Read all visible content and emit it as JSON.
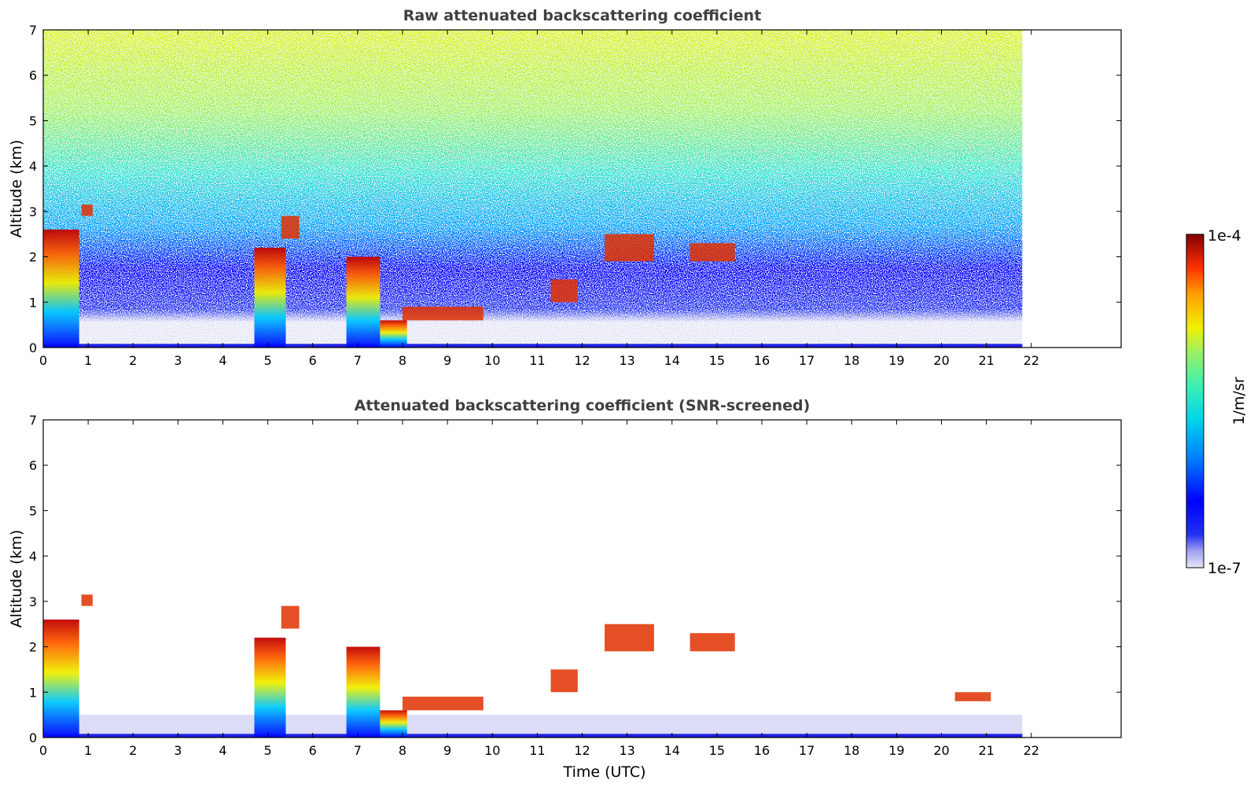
{
  "colors": {
    "colormap": [
      "#e8e8f8",
      "#c8c8f0",
      "#a0a0f0",
      "#7070f0",
      "#2030f0",
      "#0000ff",
      "#0050ff",
      "#00a0ff",
      "#00d8e8",
      "#40f0b0",
      "#a0f060",
      "#f0f000",
      "#ffa000",
      "#ff4000",
      "#e00000",
      "#800000"
    ]
  },
  "colorbar": {
    "max_label": "1e-4",
    "min_label": "1e-7",
    "unit_label": "1/m/sr"
  },
  "chart_data": [
    {
      "type": "heatmap",
      "title": "Raw attenuated backscattering coefficient",
      "xlabel": "",
      "ylabel": "Altitude (km)",
      "xlim": [
        0,
        24
      ],
      "ylim": [
        0,
        7
      ],
      "xticks": [
        "0",
        "1",
        "2",
        "3",
        "4",
        "5",
        "6",
        "7",
        "8",
        "9",
        "10",
        "11",
        "12",
        "13",
        "14",
        "15",
        "16",
        "17",
        "18",
        "19",
        "20",
        "21",
        "22"
      ],
      "yticks": [
        "0",
        "1",
        "2",
        "3",
        "4",
        "5",
        "6",
        "7"
      ],
      "data_end_time": 21.8,
      "scale": "log",
      "cloud_features": [
        {
          "time_start": 0.0,
          "time_end": 0.8,
          "alt_base": 0.0,
          "alt_top": 2.6
        },
        {
          "time_start": 0.85,
          "time_end": 1.1,
          "alt_base": 2.9,
          "alt_top": 3.15
        },
        {
          "time_start": 4.7,
          "time_end": 5.4,
          "alt_base": 0.0,
          "alt_top": 2.2
        },
        {
          "time_start": 5.3,
          "time_end": 5.7,
          "alt_base": 2.4,
          "alt_top": 2.9
        },
        {
          "time_start": 6.75,
          "time_end": 7.5,
          "alt_base": 0.0,
          "alt_top": 2.0
        },
        {
          "time_start": 7.5,
          "time_end": 8.1,
          "alt_base": 0.0,
          "alt_top": 0.6
        },
        {
          "time_start": 8.0,
          "time_end": 9.8,
          "alt_base": 0.6,
          "alt_top": 0.9
        },
        {
          "time_start": 11.3,
          "time_end": 11.9,
          "alt_base": 1.0,
          "alt_top": 1.5
        },
        {
          "time_start": 12.5,
          "time_end": 13.6,
          "alt_base": 1.9,
          "alt_top": 2.5
        },
        {
          "time_start": 14.4,
          "time_end": 15.4,
          "alt_base": 1.9,
          "alt_top": 2.3
        }
      ]
    },
    {
      "type": "heatmap",
      "title": "Attenuated backscattering coefficient (SNR-screened)",
      "xlabel": "Time (UTC)",
      "ylabel": "Altitude (km)",
      "xlim": [
        0,
        24
      ],
      "ylim": [
        0,
        7
      ],
      "xticks": [
        "0",
        "1",
        "2",
        "3",
        "4",
        "5",
        "6",
        "7",
        "8",
        "9",
        "10",
        "11",
        "12",
        "13",
        "14",
        "15",
        "16",
        "17",
        "18",
        "19",
        "20",
        "21",
        "22"
      ],
      "yticks": [
        "0",
        "1",
        "2",
        "3",
        "4",
        "5",
        "6",
        "7"
      ],
      "data_end_time": 21.8,
      "scale": "log",
      "cloud_features": [
        {
          "time_start": 0.0,
          "time_end": 0.8,
          "alt_base": 0.0,
          "alt_top": 2.6
        },
        {
          "time_start": 0.85,
          "time_end": 1.1,
          "alt_base": 2.9,
          "alt_top": 3.15
        },
        {
          "time_start": 4.7,
          "time_end": 5.4,
          "alt_base": 0.0,
          "alt_top": 2.2
        },
        {
          "time_start": 5.3,
          "time_end": 5.7,
          "alt_base": 2.4,
          "alt_top": 2.9
        },
        {
          "time_start": 6.75,
          "time_end": 7.5,
          "alt_base": 0.0,
          "alt_top": 2.0
        },
        {
          "time_start": 7.5,
          "time_end": 8.1,
          "alt_base": 0.0,
          "alt_top": 0.6
        },
        {
          "time_start": 8.0,
          "time_end": 9.8,
          "alt_base": 0.6,
          "alt_top": 0.9
        },
        {
          "time_start": 11.3,
          "time_end": 11.9,
          "alt_base": 1.0,
          "alt_top": 1.5
        },
        {
          "time_start": 12.5,
          "time_end": 13.6,
          "alt_base": 1.9,
          "alt_top": 2.5
        },
        {
          "time_start": 14.4,
          "time_end": 15.4,
          "alt_base": 1.9,
          "alt_top": 2.3
        },
        {
          "time_start": 20.3,
          "time_end": 21.1,
          "alt_base": 0.8,
          "alt_top": 1.0
        }
      ]
    }
  ]
}
